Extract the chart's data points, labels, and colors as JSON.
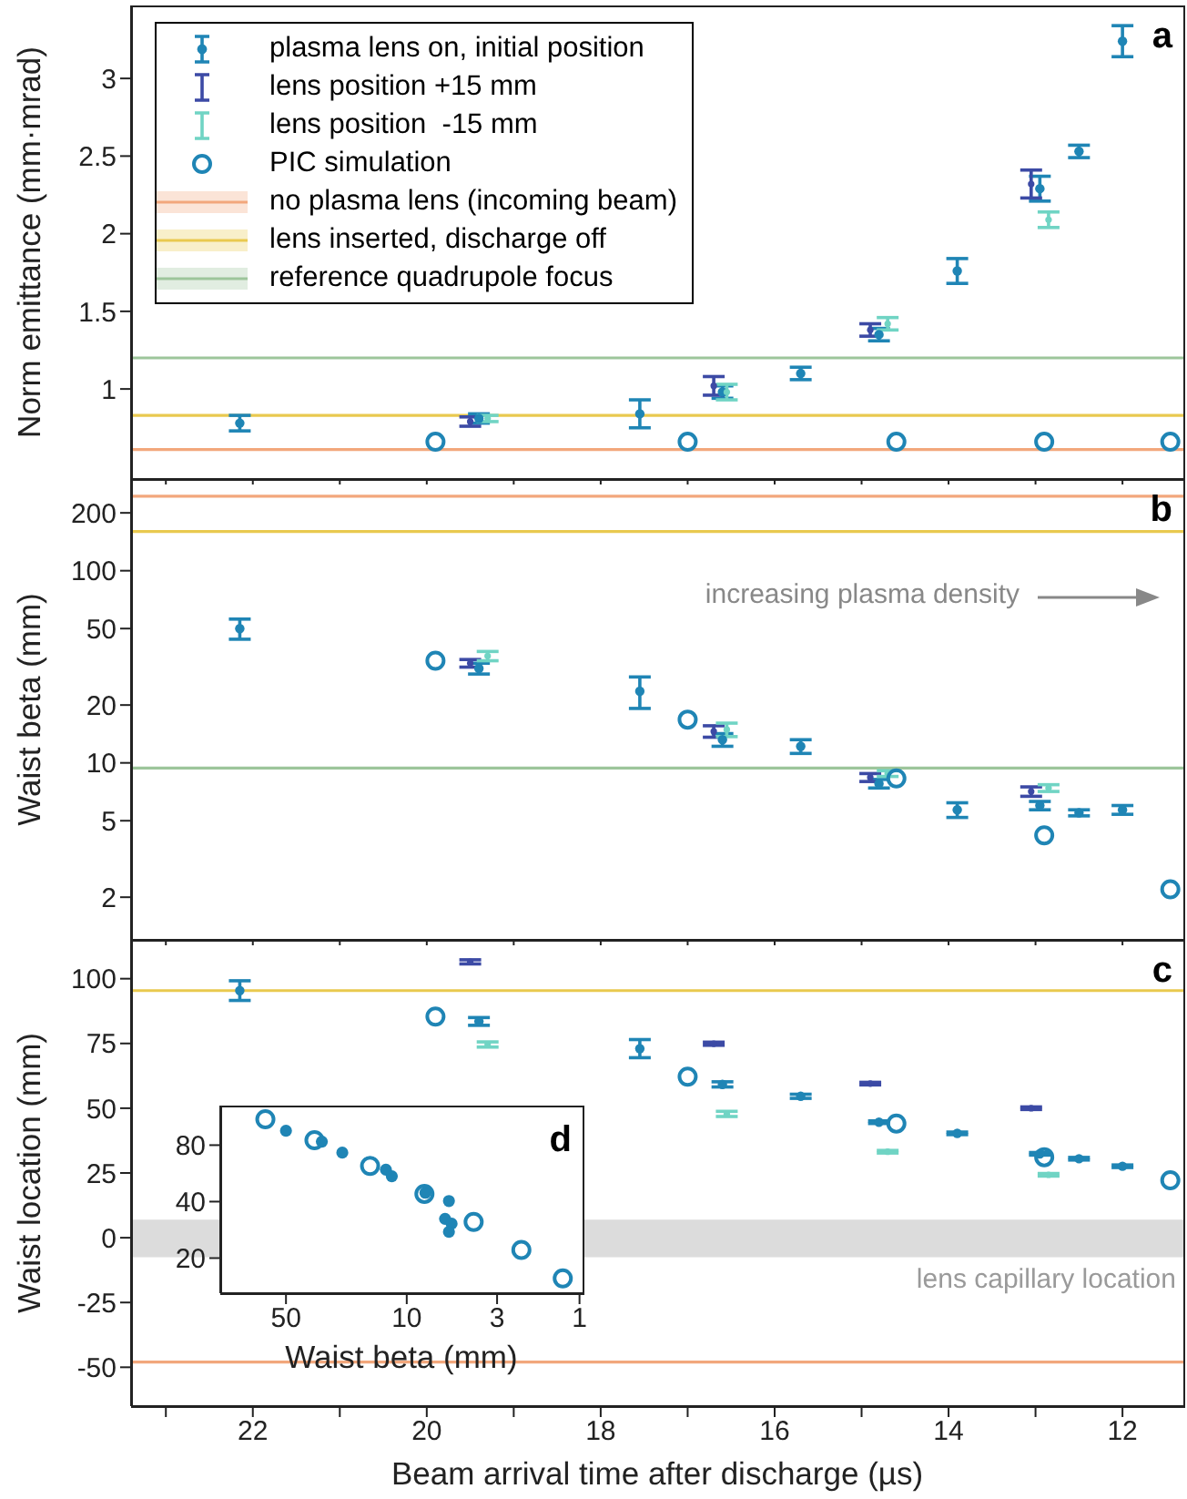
{
  "chart_data": [
    {
      "type": "scatter",
      "title": "a",
      "ylabel": "Norm emittance (mm·mrad)",
      "xlim": [
        23.4,
        11.3
      ],
      "xticks": [
        23,
        22,
        21,
        20,
        19,
        18,
        17,
        16,
        15,
        14,
        13,
        12
      ],
      "ylim": [
        0.42,
        3.47
      ],
      "yticks": [
        1,
        1.5,
        2,
        2.5,
        3
      ],
      "tick_labels": "y",
      "legend": "top left",
      "series": [
        {
          "name": "plasma lens on, initial position",
          "color": "#1f85b5",
          "marker": "circle",
          "x": [
            22.15,
            19.4,
            17.55,
            16.6,
            15.7,
            14.8,
            13.9,
            12.95,
            12.5,
            12.0
          ],
          "values": [
            0.78,
            0.81,
            0.84,
            0.98,
            1.1,
            1.35,
            1.76,
            2.29,
            2.53,
            3.24
          ],
          "errors": [
            0.05,
            0.03,
            0.09,
            0.04,
            0.04,
            0.04,
            0.08,
            0.08,
            0.04,
            0.1
          ]
        },
        {
          "name": "lens position +15 mm",
          "color": "#3c4aa5",
          "x": [
            19.5,
            16.7,
            14.9,
            13.05
          ],
          "values": [
            0.79,
            1.02,
            1.38,
            2.32
          ],
          "errors": [
            0.03,
            0.06,
            0.04,
            0.09
          ]
        },
        {
          "name": "lens position  -15 mm",
          "color": "#70d4c4",
          "x": [
            19.3,
            16.55,
            14.7,
            12.85
          ],
          "values": [
            0.81,
            0.98,
            1.42,
            2.09
          ],
          "errors": [
            0.02,
            0.05,
            0.04,
            0.05
          ]
        },
        {
          "name": "PIC simulation",
          "color": "#1f85b5",
          "marker": "circle",
          "x": [
            19.9,
            17.0,
            14.6,
            12.9,
            11.45
          ],
          "values": [
            0.66,
            0.66,
            0.66,
            0.66,
            0.66
          ]
        }
      ],
      "ref_lines": [
        {
          "axis": "y",
          "value": 0.61,
          "label": "no plasma lens (incoming beam)",
          "color": "#f2a77c"
        },
        {
          "axis": "y",
          "value": 0.83,
          "label": "lens inserted, discharge off",
          "color": "#e9c94f"
        },
        {
          "axis": "y",
          "value": 1.2,
          "label": "reference quadrupole focus",
          "color": "#9dc59b"
        }
      ]
    },
    {
      "type": "scatter",
      "title": "b",
      "ylabel": "Waist beta (mm)",
      "xlim": [
        23.4,
        11.3
      ],
      "xticks": [
        23,
        22,
        21,
        20,
        19,
        18,
        17,
        16,
        15,
        14,
        13,
        12
      ],
      "ylim": [
        1.2,
        300
      ],
      "yticks": [
        2,
        5,
        10,
        20,
        50,
        100,
        200
      ],
      "log": "y",
      "tick_labels": "y",
      "annotations": [
        "increasing plasma density"
      ],
      "series": [
        {
          "color": "#1f85b5",
          "marker": "circle",
          "x": [
            22.15,
            19.4,
            17.55,
            16.6,
            15.7,
            14.8,
            13.9,
            12.95,
            12.5,
            12.0
          ],
          "values": [
            50,
            31,
            23.6,
            13.2,
            12.2,
            7.8,
            5.7,
            6.0,
            5.5,
            5.7
          ],
          "errors": [
            6,
            2,
            4.4,
            1,
            1,
            0.4,
            0.5,
            0.3,
            0.2,
            0.3
          ]
        },
        {
          "color": "#3c4aa5",
          "x": [
            19.5,
            16.7,
            14.9,
            13.05
          ],
          "values": [
            33,
            14.6,
            8.4,
            7.1
          ],
          "errors": [
            1.5,
            1,
            0.4,
            0.4
          ]
        },
        {
          "color": "#70d4c4",
          "x": [
            19.3,
            16.55,
            14.7,
            12.85
          ],
          "values": [
            36,
            14.9,
            8.8,
            7.4
          ],
          "errors": [
            2,
            1.2,
            0.3,
            0.3
          ]
        },
        {
          "color": "#1f85b5",
          "marker": "circle",
          "x": [
            19.9,
            17.0,
            14.6,
            12.9,
            11.45
          ],
          "values": [
            34,
            16.8,
            8.3,
            4.2,
            2.2
          ]
        }
      ],
      "ref_lines": [
        {
          "axis": "y",
          "value": 244,
          "color": "#f2a77c"
        },
        {
          "axis": "y",
          "value": 160,
          "color": "#e9c94f"
        },
        {
          "axis": "y",
          "value": 9.4,
          "color": "#9dc59b"
        }
      ]
    },
    {
      "type": "scatter",
      "title": "c",
      "xlabel": "Beam arrival time after discharge (µs)",
      "ylabel": "Waist location (mm)",
      "xlim": [
        23.4,
        11.3
      ],
      "xticks": [
        {
          "value": 23,
          "label": null
        },
        22,
        {
          "value": 21,
          "label": null
        },
        20,
        {
          "value": 19,
          "label": null
        },
        18,
        {
          "value": 17,
          "label": null
        },
        16,
        {
          "value": 15,
          "label": null
        },
        14,
        {
          "value": 13,
          "label": null
        },
        12
      ],
      "ylim": [
        -65,
        115
      ],
      "yticks": [
        -50,
        -25,
        0,
        25,
        50,
        75,
        100
      ],
      "series": [
        {
          "color": "#1f85b5",
          "marker": "circle",
          "x": [
            22.15,
            19.4,
            17.55,
            16.6,
            15.7,
            14.8,
            13.9,
            12.95,
            12.5,
            12.0
          ],
          "values": [
            95.4,
            83.5,
            73,
            59.2,
            54.6,
            44.6,
            40.3,
            32.4,
            30.5,
            27.6
          ],
          "errors": [
            3.8,
            1.5,
            3.5,
            1,
            0.8,
            0.5,
            0.5,
            0.5,
            0.5,
            0.5
          ]
        },
        {
          "color": "#3c4aa5",
          "x": [
            19.5,
            16.7,
            14.9,
            13.05
          ],
          "values": [
            106.5,
            74.9,
            59.5,
            50
          ],
          "errors": [
            0.8,
            0.6,
            0.5,
            0.5
          ]
        },
        {
          "color": "#70d4c4",
          "x": [
            19.3,
            16.55,
            14.7,
            12.85
          ],
          "values": [
            74.6,
            47.8,
            33.2,
            24.3
          ],
          "errors": [
            1,
            1,
            0.5,
            0.5
          ]
        },
        {
          "color": "#1f85b5",
          "marker": "circle",
          "x": [
            19.9,
            17.0,
            14.6,
            12.9,
            11.45
          ],
          "values": [
            85.4,
            62.2,
            44.1,
            31.1,
            22.2
          ]
        }
      ],
      "ref_lines": [
        {
          "axis": "y",
          "value": 95.4,
          "color": "#e9c94f"
        },
        {
          "axis": "y",
          "value": -48,
          "color": "#f2a77c"
        }
      ],
      "bands": [
        {
          "axis": "y",
          "from": -7.5,
          "to": 7,
          "label": "lens capillary location",
          "color": "#dcdcdc"
        }
      ]
    },
    {
      "type": "scatter",
      "title": "d",
      "xlabel": "Waist beta (mm)",
      "xlim": [
        120,
        0.96
      ],
      "xticks": [
        50,
        10,
        3,
        1
      ],
      "ylim": [
        13,
        130
      ],
      "yticks": [
        20,
        40,
        80
      ],
      "log": "xy",
      "series": [
        {
          "color": "#1f85b5",
          "marker": "circle",
          "x": [
            50,
            31,
            23.6,
            13.2,
            12.2,
            7.8,
            5.7,
            6.0,
            5.5,
            5.7
          ],
          "values": [
            95.4,
            83.5,
            73,
            59.2,
            54.6,
            44.6,
            40.3,
            32.4,
            30.5,
            27.6
          ],
          "errors": [
            null,
            null,
            null,
            null,
            null,
            null,
            null,
            null,
            null,
            null
          ]
        },
        {
          "color": "#1f85b5",
          "marker": "circle",
          "x": [
            65.8,
            34.2,
            16.3,
            7.9,
            4.1,
            2.17,
            1.25
          ],
          "values": [
            110,
            85,
            62,
            44,
            31.2,
            22.1,
            15.6
          ]
        }
      ]
    }
  ]
}
